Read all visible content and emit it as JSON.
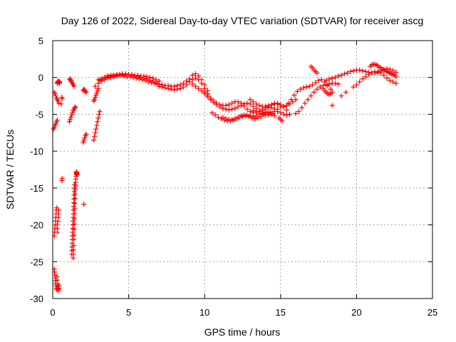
{
  "chart_data": {
    "type": "scatter",
    "title": "Day 126 of 2022, Sidereal Day-to-day VTEC variation (SDTVAR) for receiver ascg",
    "xlabel": "GPS time / hours",
    "ylabel": "SDTVAR / TECUs",
    "xlim": [
      0,
      25
    ],
    "ylim": [
      -30,
      5
    ],
    "xticks": [
      "0",
      "5",
      "10",
      "15",
      "20",
      "25"
    ],
    "yticks": [
      "5",
      "0",
      "-5",
      "-10",
      "-15",
      "-20",
      "-25",
      "-30"
    ],
    "grid": true,
    "marker": "+",
    "series_color": "#ff0000",
    "series": [
      {
        "name": "SDTVAR",
        "x": [
          0.05,
          0.1,
          0.15,
          0.2,
          0.25,
          0.3,
          0.1,
          0.15,
          0.2,
          0.25,
          0.3,
          0.35,
          0.4,
          0.3,
          0.32,
          0.34,
          0.36,
          0.38,
          0.4,
          0.42,
          0.44,
          0.46,
          0.1,
          0.12,
          0.14,
          0.16,
          0.18,
          0.2,
          0.22,
          0.24,
          0.26,
          0.28,
          0.3,
          0.32,
          0.34,
          0.36,
          0.38,
          0.4,
          0.1,
          0.12,
          0.14,
          0.16,
          0.18,
          0.2,
          0.22,
          0.24,
          0.26,
          0.28,
          0.3,
          0.32,
          0.34,
          0.36,
          0.38,
          0.4,
          0.42,
          0.6,
          0.62,
          0.6,
          0.62,
          0.55,
          1.1,
          1.15,
          1.2,
          1.25,
          1.3,
          1.35,
          1.4,
          1.1,
          1.15,
          1.2,
          1.25,
          1.3,
          1.35,
          1.4,
          1.45,
          1.5,
          1.35,
          1.36,
          1.37,
          1.38,
          1.39,
          1.4,
          1.41,
          1.42,
          1.43,
          1.44,
          1.45,
          1.46,
          1.47,
          1.48,
          1.49,
          1.5,
          1.51,
          1.52,
          1.53,
          1.54,
          1.55,
          1.56,
          1.57,
          1.58,
          1.59,
          1.6,
          1.25,
          1.26,
          1.27,
          1.28,
          1.29,
          1.3,
          1.31,
          1.32,
          1.33,
          1.34,
          1.35,
          1.36,
          1.37,
          1.38,
          1.39,
          1.4,
          1.41,
          1.42,
          1.43,
          1.44,
          2.0,
          2.05,
          2.1,
          2.15,
          2.2,
          2.0,
          2.05,
          2.1,
          2.15,
          2.2,
          2.05,
          2.7,
          2.75,
          2.8,
          2.85,
          2.9,
          2.95,
          3.0,
          3.05,
          3.1,
          2.7,
          2.75,
          2.8,
          2.85,
          2.9,
          2.95,
          3.0,
          3.0,
          3.2,
          3.4,
          3.6,
          3.8,
          4.0,
          4.2,
          4.4,
          4.6,
          4.8,
          5.0,
          5.2,
          5.4,
          5.6,
          5.8,
          6.0,
          6.2,
          6.4,
          6.6,
          6.8,
          7.0,
          2.8,
          3.0,
          3.2,
          3.4,
          3.6,
          3.8,
          4.0,
          4.2,
          4.4,
          4.6,
          4.8,
          5.0,
          5.2,
          5.4,
          5.6,
          5.8,
          6.0,
          6.2,
          6.4,
          6.6,
          6.8,
          7.0,
          3.1,
          3.3,
          3.5,
          3.7,
          3.9,
          4.1,
          4.3,
          4.5,
          4.7,
          4.9,
          5.1,
          5.3,
          5.5,
          5.7,
          5.9,
          6.1,
          6.3,
          6.5,
          6.7,
          6.9,
          7.0,
          7.2,
          7.4,
          7.6,
          7.8,
          8.0,
          8.2,
          8.4,
          8.6,
          8.8,
          9.0,
          9.2,
          9.4,
          9.6,
          9.8,
          10.0,
          10.2,
          7.0,
          7.2,
          7.4,
          7.6,
          7.8,
          8.0,
          8.2,
          8.4,
          8.6,
          8.8,
          9.0,
          9.2,
          9.4,
          9.6,
          9.8,
          10.0,
          10.2,
          10.4,
          9.0,
          9.2,
          9.4,
          9.6,
          9.8,
          10.0,
          10.2,
          10.4,
          10.6,
          10.8,
          11.0,
          11.2,
          11.4,
          11.6,
          11.8,
          12.0,
          12.2,
          12.4,
          12.6,
          12.8,
          13.0,
          13.2,
          13.4,
          13.6,
          13.8,
          14.0,
          14.2,
          14.4,
          14.6,
          14.8,
          15.0,
          15.2,
          15.4,
          15.6,
          15.8,
          16.0,
          10.5,
          10.7,
          10.9,
          11.1,
          11.3,
          11.5,
          11.7,
          11.9,
          12.1,
          12.3,
          12.5,
          12.7,
          12.9,
          13.1,
          13.3,
          13.5,
          13.7,
          13.9,
          14.1,
          14.3,
          14.5,
          10.0,
          10.2,
          10.4,
          10.6,
          10.8,
          11.0,
          11.2,
          11.4,
          11.6,
          11.8,
          12.0,
          12.2,
          12.4,
          12.6,
          12.8,
          13.0,
          13.2,
          13.4,
          13.6,
          13.8,
          14.0,
          14.2,
          14.4,
          14.6,
          14.8,
          15.0,
          15.2,
          15.4,
          15.6,
          11.2,
          11.4,
          11.6,
          11.8,
          12.0,
          12.2,
          12.4,
          12.6,
          12.8,
          13.0,
          13.2,
          13.4,
          13.6,
          13.8,
          14.0,
          14.2,
          14.4,
          14.6,
          13.0,
          13.2,
          13.4,
          13.6,
          13.8,
          14.0,
          14.2,
          14.4,
          14.6,
          14.8,
          13.2,
          13.4,
          13.6,
          13.8,
          14.0,
          14.2,
          14.4,
          14.6,
          14.8,
          15.0,
          15.2,
          15.4,
          14.9,
          15.0,
          15.1,
          15.5,
          15.7,
          15.9,
          16.1,
          16.3,
          16.5,
          16.7,
          16.9,
          17.1,
          17.3,
          17.5,
          17.7,
          17.9,
          18.1,
          18.3,
          16.0,
          16.2,
          16.4,
          16.6,
          16.8,
          17.0,
          17.2,
          17.4,
          17.6,
          17.8,
          18.0,
          18.2,
          18.4,
          18.6,
          18.8,
          17.0,
          17.1,
          17.2,
          17.3,
          17.4,
          17.8,
          17.9,
          18.0,
          18.1,
          18.2,
          18.3,
          18.4,
          18.0,
          18.2,
          18.4,
          18.6,
          18.8,
          19.0,
          19.2,
          19.4,
          19.6,
          19.8,
          20.0,
          20.2,
          20.4,
          20.6,
          20.8,
          21.0,
          21.2,
          21.4,
          21.6,
          21.8,
          22.0,
          22.2,
          22.4,
          22.6,
          19.8,
          20.0,
          20.2,
          20.4,
          20.6,
          20.8,
          21.0,
          21.2,
          21.4,
          21.6,
          21.8,
          22.0,
          22.2,
          22.4,
          22.6,
          20.9,
          21.0,
          21.1,
          21.2,
          21.3,
          21.4,
          21.5,
          21.6,
          21.7,
          21.8,
          21.9,
          22.0,
          22.1,
          22.2,
          22.3,
          22.4,
          22.5,
          22.6,
          18.4,
          19.0,
          19.3
        ],
        "y": [
          -7.0,
          -6.8,
          -6.5,
          -6.3,
          -6.0,
          -5.8,
          -2.0,
          -2.2,
          -2.5,
          -2.8,
          -3.0,
          -3.2,
          -3.5,
          -0.8,
          -0.7,
          -0.6,
          -0.5,
          -0.5,
          -0.6,
          -0.7,
          -0.8,
          -0.6,
          -21.5,
          -21.0,
          -20.5,
          -20.0,
          -19.5,
          -19.0,
          -18.5,
          -18.0,
          -17.7,
          -20.0,
          -20.5,
          -21.0,
          -19.5,
          -19.0,
          -18.5,
          -18.0,
          -26.0,
          -26.4,
          -26.8,
          -27.2,
          -27.6,
          -28.0,
          -28.3,
          -28.6,
          -28.8,
          -27.0,
          -27.5,
          -28.0,
          -28.4,
          -28.7,
          -28.9,
          -28.6,
          -28.2,
          -14.0,
          -13.7,
          -2.7,
          -2.9,
          -3.6,
          -0.3,
          -0.2,
          -0.4,
          -0.6,
          -0.8,
          -1.0,
          -1.2,
          -6.0,
          -5.7,
          -5.4,
          -5.1,
          -4.8,
          -4.5,
          -4.3,
          -4.1,
          -4.0,
          -24.5,
          -24.0,
          -23.4,
          -22.8,
          -22.0,
          -21.4,
          -20.6,
          -19.9,
          -19.2,
          -18.5,
          -17.8,
          -17.1,
          -16.4,
          -15.8,
          -15.2,
          -14.7,
          -14.2,
          -13.8,
          -13.4,
          -13.1,
          -12.9,
          -12.8,
          -12.9,
          -13.0,
          -13.1,
          -13.2,
          -24.0,
          -23.5,
          -23.0,
          -22.5,
          -22.0,
          -21.5,
          -21.0,
          -20.5,
          -20.0,
          -19.5,
          -19.0,
          -18.5,
          -18.0,
          -17.5,
          -17.0,
          -16.5,
          -16.0,
          -15.5,
          -15.0,
          -14.5,
          -8.8,
          -8.5,
          -8.2,
          -7.9,
          -7.7,
          -1.8,
          -1.6,
          -1.7,
          -1.9,
          -2.0,
          -17.2,
          -8.5,
          -8.0,
          -7.5,
          -7.0,
          -6.5,
          -6.0,
          -5.5,
          -5.0,
          -4.6,
          -3.2,
          -3.0,
          -2.7,
          -2.4,
          -2.1,
          -1.8,
          -1.5,
          -0.3,
          -0.2,
          0.0,
          0.2,
          0.3,
          0.3,
          0.4,
          0.4,
          0.5,
          0.5,
          0.4,
          0.4,
          0.3,
          0.3,
          0.2,
          0.2,
          0.1,
          0.0,
          -0.1,
          -0.3,
          -0.5,
          -1.2,
          -0.8,
          -0.5,
          -0.3,
          -0.1,
          0.0,
          0.1,
          0.2,
          0.3,
          0.3,
          0.4,
          0.4,
          0.3,
          0.2,
          0.1,
          0.0,
          -0.1,
          -0.2,
          -0.4,
          -0.5,
          -0.7,
          -0.9,
          -0.4,
          -0.2,
          0.0,
          0.1,
          0.2,
          0.2,
          0.3,
          0.3,
          0.2,
          0.1,
          0.1,
          0.0,
          -0.1,
          -0.2,
          -0.3,
          -0.4,
          -0.6,
          -0.7,
          -0.8,
          -0.9,
          -0.9,
          -1.0,
          -1.1,
          -1.1,
          -1.2,
          -1.2,
          -1.1,
          -1.0,
          -0.8,
          -0.5,
          -0.2,
          0.3,
          0.5,
          0.2,
          -0.3,
          -1.0,
          -1.8,
          -1.2,
          -1.3,
          -1.4,
          -1.5,
          -1.6,
          -1.7,
          -1.6,
          -1.5,
          -1.3,
          -1.0,
          -0.6,
          -0.3,
          -0.1,
          -0.3,
          -0.8,
          -1.5,
          -2.2,
          -3.0,
          -0.6,
          -0.9,
          -1.2,
          -1.5,
          -1.8,
          -2.2,
          -2.6,
          -3.0,
          -3.4,
          -3.7,
          -4.0,
          -4.2,
          -4.3,
          -4.4,
          -4.3,
          -4.2,
          -4.0,
          -3.8,
          -3.6,
          -3.5,
          -3.6,
          -3.9,
          -4.2,
          -4.6,
          -4.9,
          -5.1,
          -5.1,
          -4.9,
          -4.6,
          -4.3,
          -4.0,
          -3.9,
          -3.8,
          -3.6,
          -3.3,
          -3.0,
          -4.8,
          -5.1,
          -5.4,
          -5.6,
          -5.8,
          -5.9,
          -5.9,
          -5.8,
          -5.6,
          -5.4,
          -5.3,
          -5.2,
          -5.3,
          -5.5,
          -5.6,
          -5.5,
          -5.3,
          -5.0,
          -4.8,
          -4.7,
          -4.9,
          -2.0,
          -2.4,
          -2.8,
          -3.2,
          -3.5,
          -3.7,
          -3.8,
          -3.8,
          -3.7,
          -3.5,
          -3.3,
          -3.3,
          -3.5,
          -3.9,
          -4.3,
          -4.6,
          -4.8,
          -4.8,
          -4.6,
          -4.3,
          -4.1,
          -4.0,
          -4.1,
          -4.3,
          -4.6,
          -4.8,
          -5.0,
          -5.1,
          -5.0,
          -5.4,
          -5.6,
          -5.7,
          -5.7,
          -5.6,
          -5.4,
          -5.2,
          -5.1,
          -5.1,
          -5.2,
          -5.3,
          -5.2,
          -5.0,
          -4.8,
          -4.7,
          -4.8,
          -5.0,
          -5.2,
          -3.0,
          -3.3,
          -3.6,
          -3.8,
          -3.9,
          -3.9,
          -3.8,
          -3.7,
          -3.6,
          -3.6,
          -4.5,
          -4.6,
          -4.6,
          -4.5,
          -4.3,
          -4.0,
          -3.7,
          -3.5,
          -3.5,
          -3.7,
          -4.0,
          -4.4,
          -5.5,
          -5.7,
          -5.9,
          -3.5,
          -3.0,
          -2.4,
          -1.9,
          -1.6,
          -1.4,
          -1.3,
          -1.2,
          -1.0,
          -0.7,
          -0.4,
          -0.3,
          -0.6,
          -1.1,
          -1.6,
          -4.9,
          -4.6,
          -4.1,
          -3.5,
          -3.0,
          -2.5,
          -2.0,
          -1.6,
          -1.3,
          -1.1,
          -1.0,
          -0.9,
          -0.8,
          -0.8,
          -0.9,
          1.5,
          1.3,
          1.0,
          0.8,
          0.6,
          -1.5,
          -1.8,
          -2.0,
          -2.2,
          -2.3,
          -2.2,
          -2.0,
          -0.4,
          -0.2,
          -0.1,
          0.0,
          0.2,
          0.3,
          0.5,
          0.6,
          0.8,
          0.9,
          1.0,
          1.0,
          0.9,
          0.8,
          0.7,
          0.6,
          0.6,
          0.7,
          0.9,
          1.1,
          1.2,
          1.1,
          0.9,
          0.7,
          -1.3,
          -1.0,
          -0.6,
          -0.2,
          0.1,
          0.4,
          0.6,
          0.8,
          0.8,
          0.6,
          0.3,
          -0.1,
          -0.4,
          -0.6,
          -0.8,
          1.5,
          1.7,
          1.8,
          1.8,
          1.7,
          1.6,
          1.4,
          1.3,
          1.1,
          1.0,
          0.9,
          0.8,
          0.7,
          0.6,
          0.5,
          0.4,
          0.3,
          0.1,
          -3.8,
          -2.5,
          -2.0
        ]
      }
    ]
  }
}
